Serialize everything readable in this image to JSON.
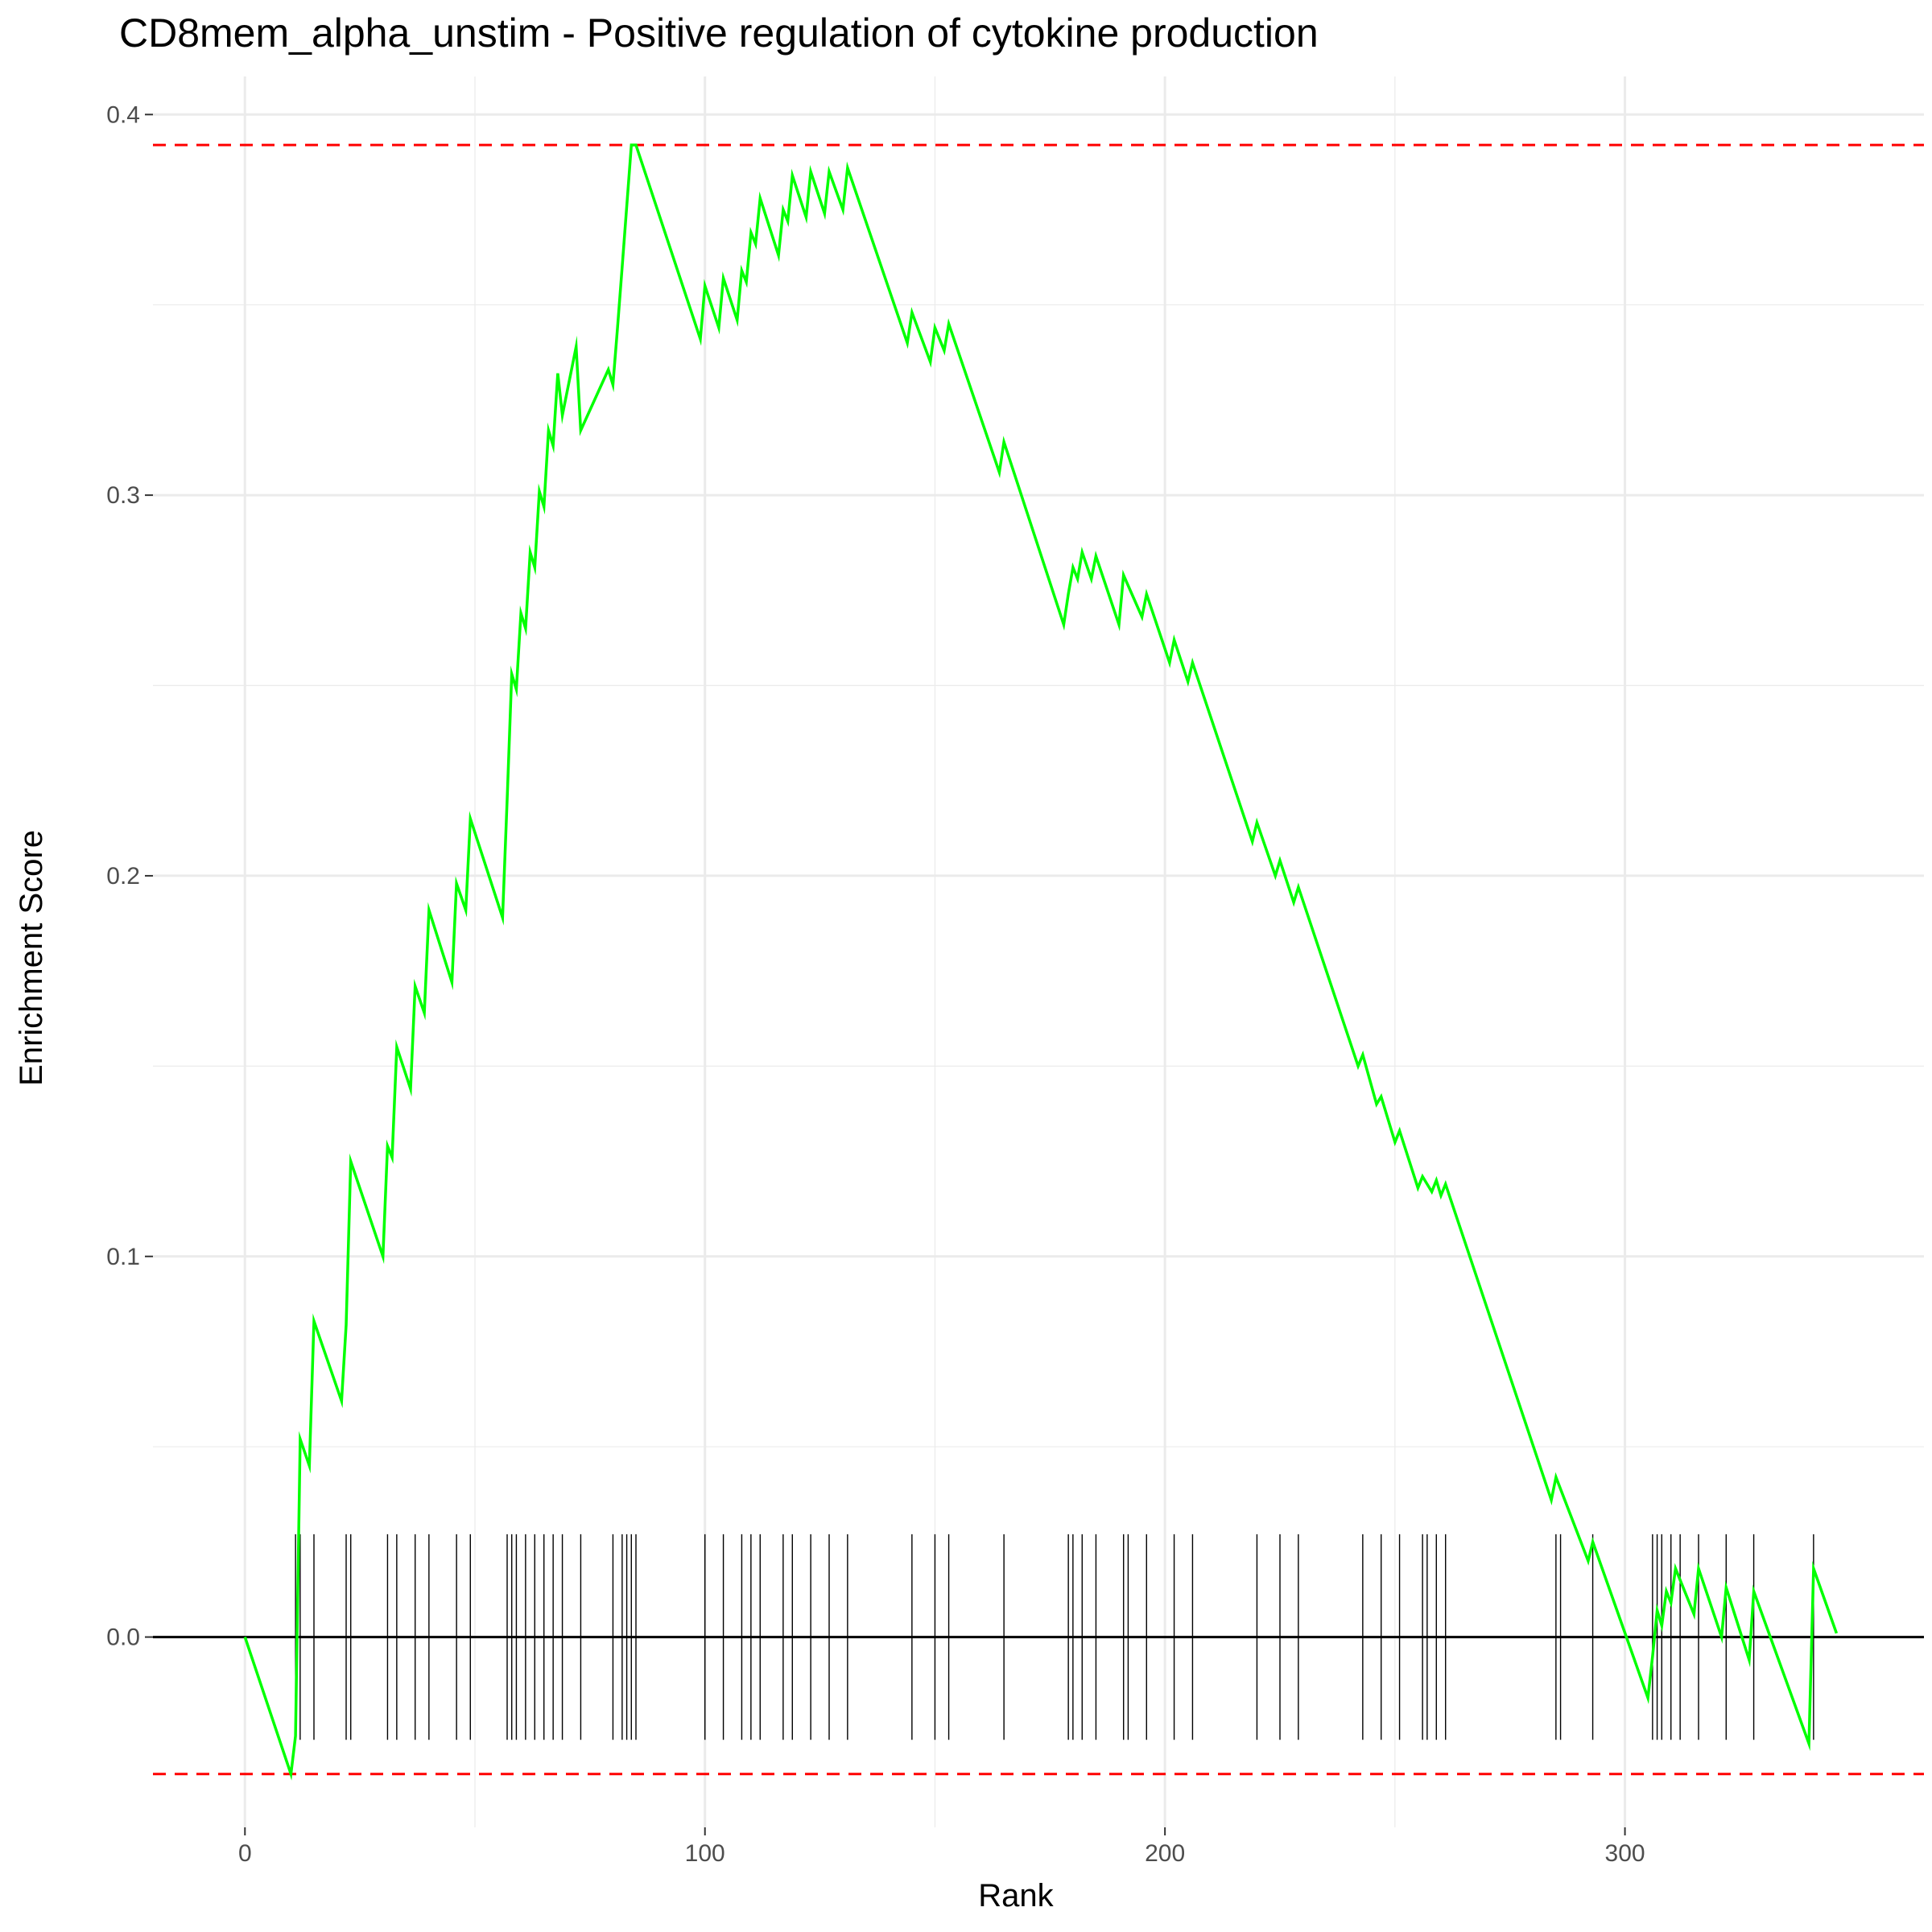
{
  "chart_data": {
    "type": "line",
    "title": "CD8mem_alpha_unstim - Positive regulation of cytokine production",
    "xlabel": "Rank",
    "ylabel": "Enrichment Score",
    "xlim": [
      -20,
      365
    ],
    "ylim": [
      -0.05,
      0.41
    ],
    "x_ticks": [
      0,
      100,
      200,
      300
    ],
    "x_tick_labels": [
      "0",
      "100",
      "200",
      "300"
    ],
    "y_ticks": [
      0.0,
      0.1,
      0.2,
      0.3,
      0.4
    ],
    "y_tick_labels": [
      "0.0",
      "0.1",
      "0.2",
      "0.3",
      "0.4"
    ],
    "grid": true,
    "colors": {
      "curve": "#00ff00",
      "threshold": "#ff0000",
      "baseline": "#000000",
      "hits": "#000000",
      "grid": "#ebebeb"
    },
    "thresholds": [
      0.392,
      -0.036
    ],
    "baseline": 0,
    "hit_marks": {
      "y_range": [
        -0.027,
        0.027
      ],
      "positions": [
        11,
        12,
        15,
        22,
        23,
        31,
        33,
        37,
        40,
        46,
        49,
        57,
        58,
        59,
        61,
        63,
        65,
        67,
        69,
        73,
        80,
        82,
        83,
        84,
        85,
        100,
        104,
        108,
        110,
        112,
        117,
        119,
        123,
        127,
        131,
        145,
        150,
        153,
        165,
        179,
        180,
        182,
        185,
        191,
        192,
        196,
        202,
        206,
        220,
        225,
        229,
        243,
        247,
        251,
        256,
        257,
        259,
        261,
        285,
        286,
        293,
        306,
        307,
        308,
        310,
        312,
        316,
        322,
        328,
        341
      ]
    },
    "series": [
      {
        "x": [
          0,
          10,
          11,
          12,
          14,
          15,
          21,
          22,
          23,
          30,
          31,
          32,
          33,
          36,
          37,
          39,
          40,
          45,
          46,
          48,
          49,
          56,
          57,
          58,
          59,
          60,
          61,
          62,
          63,
          64,
          65,
          66,
          67,
          68,
          69,
          72,
          73,
          79,
          80,
          81,
          82,
          83,
          84,
          85,
          99,
          100,
          103,
          104,
          107,
          108,
          109,
          110,
          111,
          112,
          116,
          117,
          118,
          119,
          122,
          123,
          126,
          127,
          130,
          131,
          144,
          145,
          149,
          150,
          152,
          153,
          164,
          165,
          178,
          179,
          180,
          181,
          182,
          184,
          185,
          190,
          191,
          195,
          196,
          201,
          202,
          205,
          206,
          219,
          220,
          224,
          225,
          228,
          229,
          242,
          243,
          246,
          247,
          250,
          251,
          255,
          256,
          258,
          259,
          260,
          261,
          284,
          285,
          292,
          293,
          305,
          306,
          307,
          308,
          309,
          310,
          311,
          312,
          315,
          316,
          321,
          322,
          327,
          328,
          340,
          341,
          346
        ],
        "y": [
          0.0,
          -0.036,
          -0.026,
          0.052,
          0.045,
          0.083,
          0.062,
          0.082,
          0.125,
          0.1,
          0.129,
          0.126,
          0.155,
          0.144,
          0.171,
          0.164,
          0.191,
          0.172,
          0.198,
          0.191,
          0.215,
          0.189,
          0.22,
          0.253,
          0.249,
          0.269,
          0.265,
          0.285,
          0.281,
          0.301,
          0.297,
          0.317,
          0.313,
          0.332,
          0.321,
          0.339,
          0.317,
          0.333,
          0.329,
          0.344,
          0.36,
          0.376,
          0.392,
          0.392,
          0.341,
          0.355,
          0.344,
          0.357,
          0.346,
          0.359,
          0.356,
          0.369,
          0.366,
          0.378,
          0.363,
          0.375,
          0.372,
          0.384,
          0.373,
          0.385,
          0.374,
          0.385,
          0.375,
          0.386,
          0.34,
          0.348,
          0.335,
          0.344,
          0.338,
          0.345,
          0.306,
          0.314,
          0.266,
          0.274,
          0.281,
          0.278,
          0.285,
          0.278,
          0.284,
          0.266,
          0.279,
          0.268,
          0.274,
          0.256,
          0.262,
          0.251,
          0.256,
          0.209,
          0.214,
          0.2,
          0.204,
          0.193,
          0.197,
          0.15,
          0.153,
          0.14,
          0.142,
          0.13,
          0.133,
          0.118,
          0.121,
          0.117,
          0.12,
          0.116,
          0.119,
          0.036,
          0.042,
          0.02,
          0.025,
          -0.016,
          -0.005,
          0.007,
          0.003,
          0.012,
          0.009,
          0.018,
          0.015,
          0.006,
          0.018,
          0.0,
          0.013,
          -0.006,
          0.012,
          -0.028,
          0.018,
          0.001
        ]
      }
    ]
  }
}
